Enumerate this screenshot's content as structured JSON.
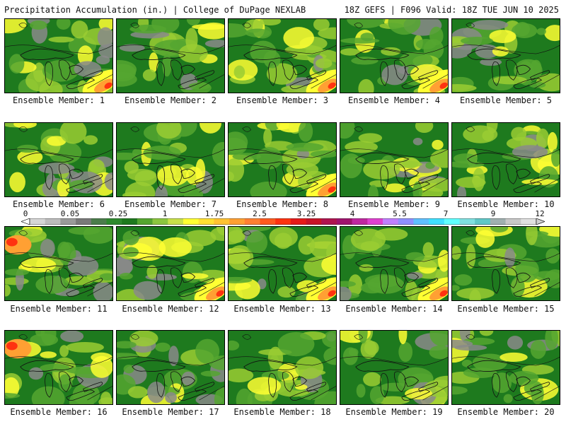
{
  "header": {
    "left_title": "Precipitation Accumulation (in.) | College of DuPage NEXLAB",
    "right_title": "18Z GEFS | F096 Valid: 18Z TUE JUN 10 2025"
  },
  "members": [
    "Ensemble Member: 1",
    "Ensemble Member: 2",
    "Ensemble Member: 3",
    "Ensemble Member: 4",
    "Ensemble Member: 5",
    "Ensemble Member: 6",
    "Ensemble Member: 7",
    "Ensemble Member: 8",
    "Ensemble Member: 9",
    "Ensemble Member: 10",
    "Ensemble Member: 11",
    "Ensemble Member: 12",
    "Ensemble Member: 13",
    "Ensemble Member: 14",
    "Ensemble Member: 15",
    "Ensemble Member: 16",
    "Ensemble Member: 17",
    "Ensemble Member: 18",
    "Ensemble Member: 19",
    "Ensemble Member: 20"
  ],
  "colorbar": {
    "labels": [
      "0",
      "0.05",
      "0.25",
      "1",
      "1.75",
      "2.5",
      "3.25",
      "4",
      "5.5",
      "7",
      "9",
      "12"
    ],
    "colors": [
      "#d6d6d6",
      "#bdbdbd",
      "#9a9a9a",
      "#7a7a7a",
      "#4b7d4b",
      "#2e8a2e",
      "#1e7a1e",
      "#55a630",
      "#8cc63f",
      "#c8e04a",
      "#ffff33",
      "#ffe033",
      "#ffc233",
      "#ffa033",
      "#ff8033",
      "#ff5a1f",
      "#ff3210",
      "#e61a1a",
      "#c81428",
      "#b01450",
      "#a0146e",
      "#c028a0",
      "#e040d0",
      "#c080ff",
      "#9090ff",
      "#60c0ff",
      "#40e0ff",
      "#60ffff",
      "#80e0e0",
      "#60c8c8",
      "#a0b0b0",
      "#c8c8c8",
      "#e0e0e0"
    ],
    "left_arrow": "#ffffff",
    "right_arrow": "#d0d0d0"
  },
  "map_colors": {
    "base": "#1e7a1e",
    "light_green": "#55a630",
    "lime": "#9acd32",
    "yellow": "#ffff33",
    "orange": "#ffa033",
    "red": "#ff3210",
    "grey": "#8a8a8a",
    "outline": "#111111"
  }
}
